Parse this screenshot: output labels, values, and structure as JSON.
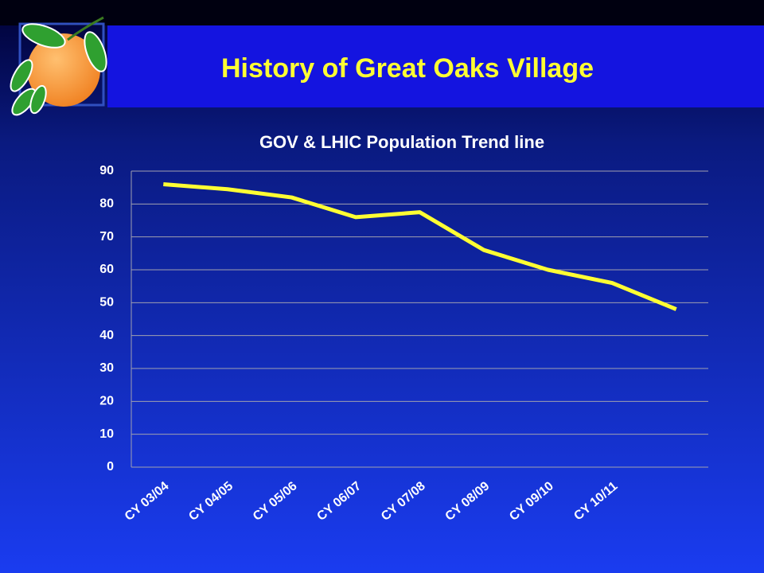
{
  "title": "History of Great Oaks Village",
  "chart_data": {
    "type": "line",
    "title": "GOV & LHIC Population Trend line",
    "categories": [
      "CY 03/04",
      "CY 04/05",
      "CY 05/06",
      "CY 06/07",
      "CY 07/08",
      "CY 08/09",
      "CY 09/10",
      "CY 10/11",
      null
    ],
    "values": [
      86,
      84.5,
      82,
      76,
      77.5,
      66,
      60,
      56,
      48
    ],
    "color": "#ffff33",
    "ylim": [
      0,
      90
    ],
    "yticks": [
      0,
      10,
      20,
      30,
      40,
      50,
      60,
      70,
      80,
      90
    ],
    "grid": true
  }
}
